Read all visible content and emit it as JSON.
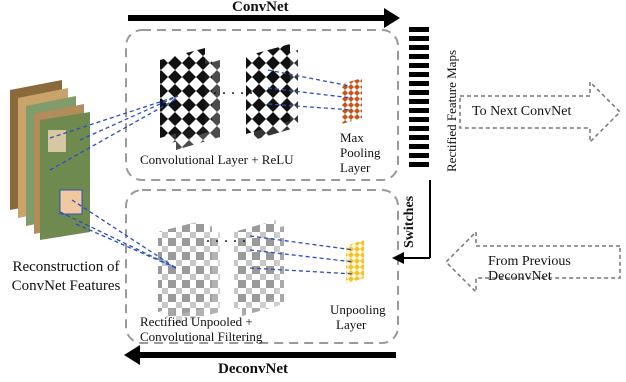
{
  "top_arrow_label": "ConvNet",
  "bottom_arrow_label": "DeconvNet",
  "conv_layer_label": "Convolutional Layer + ReLU",
  "max_pool_label": [
    "Max",
    "Pooling",
    "Layer"
  ],
  "rectified_maps_label": "Rectified Feature Maps",
  "switches_label": "Switches",
  "to_next_label": "To Next ConvNet",
  "from_prev_label": "From Previous DeconvNet",
  "reconstruction_label": [
    "Reconstruction of",
    "ConvNet Features"
  ],
  "unpooled_label": [
    "Rectified Unpooled +",
    "Convolutional Filtering"
  ],
  "unpooling_label": [
    "Unpooling",
    "Layer"
  ],
  "dots_top": "· · · · ·",
  "dots_bottom": "· · · · ·",
  "colors": {
    "dark_map": "#111111",
    "light_map": "#9a9a9a",
    "max_pool": "#c8541a",
    "unpool": "#f2c230",
    "connector": "#2a4fbf",
    "dashed_box": "#9a9a9a"
  },
  "icons": [
    "rectified-feature-maps-bars",
    "input-image-stack",
    "switches-arrow"
  ]
}
